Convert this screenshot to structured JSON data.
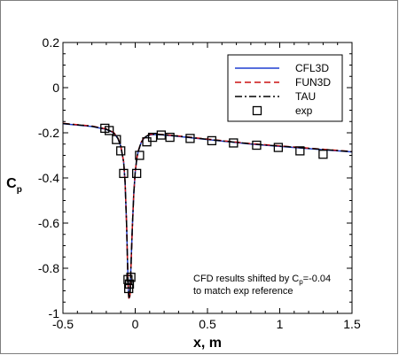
{
  "chart_data": {
    "type": "line",
    "xlabel": "x, m",
    "ylabel": "C",
    "ylabel_sub": "p",
    "xlim": [
      -0.5,
      1.5
    ],
    "ylim": [
      -1,
      0.2
    ],
    "xticks": [
      "-0.5",
      "0",
      "0.5",
      "1",
      "1.5"
    ],
    "yticks": [
      "0.2",
      "0",
      "-0.2",
      "-0.4",
      "-0.6",
      "-0.8",
      "-1"
    ],
    "grid": false,
    "legend_position": "top-right",
    "annotation": [
      "CFD results shifted by C",
      "p",
      "=-0.04",
      "to match exp reference"
    ],
    "series": [
      {
        "name": "CFL3D",
        "style": "solid",
        "color": "#1f3fd0",
        "x": [
          -0.5,
          -0.3,
          -0.2,
          -0.15,
          -0.12,
          -0.1,
          -0.08,
          -0.07,
          -0.06,
          -0.05,
          -0.045,
          -0.04,
          -0.035,
          -0.03,
          -0.02,
          -0.01,
          0.0,
          0.01,
          0.02,
          0.04,
          0.06,
          0.08,
          0.1,
          0.12,
          0.15,
          0.2,
          0.3,
          0.5,
          0.8,
          1.1,
          1.5
        ],
        "y": [
          -0.16,
          -0.172,
          -0.185,
          -0.2,
          -0.225,
          -0.26,
          -0.33,
          -0.42,
          -0.6,
          -0.85,
          -0.92,
          -0.93,
          -0.9,
          -0.8,
          -0.62,
          -0.47,
          -0.375,
          -0.32,
          -0.285,
          -0.245,
          -0.225,
          -0.215,
          -0.21,
          -0.208,
          -0.208,
          -0.21,
          -0.216,
          -0.23,
          -0.25,
          -0.265,
          -0.285
        ]
      },
      {
        "name": "FUN3D",
        "style": "dashed",
        "color": "#cc1111",
        "x": [
          -0.5,
          -0.3,
          -0.2,
          -0.15,
          -0.12,
          -0.1,
          -0.08,
          -0.07,
          -0.06,
          -0.05,
          -0.045,
          -0.04,
          -0.035,
          -0.03,
          -0.02,
          -0.01,
          0.0,
          0.01,
          0.02,
          0.04,
          0.06,
          0.08,
          0.1,
          0.12,
          0.15,
          0.2,
          0.3,
          0.5,
          0.8,
          1.1,
          1.5
        ],
        "y": [
          -0.158,
          -0.17,
          -0.183,
          -0.198,
          -0.223,
          -0.258,
          -0.328,
          -0.418,
          -0.6,
          -0.86,
          -0.93,
          -0.94,
          -0.91,
          -0.81,
          -0.62,
          -0.47,
          -0.372,
          -0.318,
          -0.283,
          -0.243,
          -0.223,
          -0.213,
          -0.208,
          -0.206,
          -0.206,
          -0.208,
          -0.214,
          -0.228,
          -0.248,
          -0.263,
          -0.283
        ]
      },
      {
        "name": "TAU",
        "style": "dashdot",
        "color": "#000000",
        "x": [
          -0.5,
          -0.3,
          -0.2,
          -0.15,
          -0.12,
          -0.1,
          -0.08,
          -0.07,
          -0.06,
          -0.05,
          -0.045,
          -0.04,
          -0.035,
          -0.03,
          -0.02,
          -0.01,
          0.0,
          0.01,
          0.02,
          0.04,
          0.06,
          0.08,
          0.1,
          0.12,
          0.15,
          0.2,
          0.3,
          0.5,
          0.8,
          1.1,
          1.5
        ],
        "y": [
          -0.159,
          -0.171,
          -0.184,
          -0.199,
          -0.224,
          -0.259,
          -0.329,
          -0.419,
          -0.6,
          -0.855,
          -0.925,
          -0.935,
          -0.905,
          -0.805,
          -0.62,
          -0.47,
          -0.374,
          -0.319,
          -0.284,
          -0.244,
          -0.224,
          -0.214,
          -0.209,
          -0.207,
          -0.207,
          -0.209,
          -0.215,
          -0.229,
          -0.249,
          -0.264,
          -0.284
        ]
      },
      {
        "name": "exp",
        "style": "markers",
        "marker": "square",
        "color": "#000000",
        "x": [
          -0.21,
          -0.18,
          -0.13,
          -0.1,
          -0.08,
          -0.05,
          -0.045,
          -0.04,
          -0.03,
          0.01,
          0.03,
          0.08,
          0.12,
          0.18,
          0.24,
          0.38,
          0.53,
          0.68,
          0.84,
          0.99,
          1.14,
          1.3
        ],
        "y": [
          -0.18,
          -0.19,
          -0.23,
          -0.28,
          -0.38,
          -0.85,
          -0.89,
          -0.87,
          -0.84,
          -0.38,
          -0.3,
          -0.24,
          -0.22,
          -0.21,
          -0.22,
          -0.225,
          -0.235,
          -0.245,
          -0.255,
          -0.265,
          -0.28,
          -0.295
        ]
      }
    ]
  }
}
